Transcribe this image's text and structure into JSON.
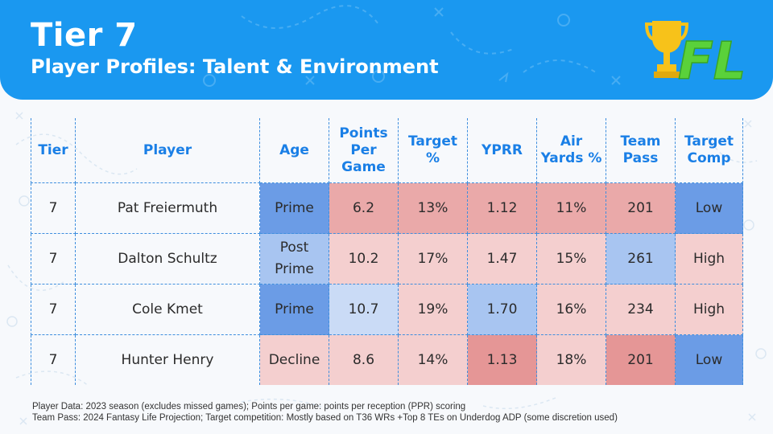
{
  "header": {
    "title": "Tier 7",
    "subtitle": "Player Profiles: Talent & Environment",
    "logo_text": "FL",
    "logo_icon": "trophy-icon"
  },
  "colors": {
    "header_blue": "#1a98f0",
    "header_text_blue": "#1a7fe6",
    "red_strong": "#e59696",
    "red_medium": "#eaa9a9",
    "red_light": "#f4cfcf",
    "blue_strong": "#6b9ce6",
    "blue_medium": "#a8c5f1",
    "blue_light": "#cadbf6",
    "logo_yellow": "#f7c21a",
    "logo_green": "#5ad13a"
  },
  "table": {
    "columns": [
      {
        "line1": "Tier",
        "line2": "",
        "line3": ""
      },
      {
        "line1": "Player",
        "line2": "",
        "line3": ""
      },
      {
        "line1": "Age",
        "line2": "",
        "line3": ""
      },
      {
        "line1": "Points",
        "line2": "Per",
        "line3": "Game"
      },
      {
        "line1": "Target",
        "line2": "%",
        "line3": ""
      },
      {
        "line1": "YPRR",
        "line2": "",
        "line3": ""
      },
      {
        "line1": "Air",
        "line2": "Yards %",
        "line3": ""
      },
      {
        "line1": "Team",
        "line2": "Pass",
        "line3": ""
      },
      {
        "line1": "Target",
        "line2": "Comp",
        "line3": ""
      }
    ],
    "rows": [
      {
        "tier": "7",
        "player": "Pat Freiermuth",
        "age_line1": "Prime",
        "age_line2": "",
        "ppg": "6.2",
        "target_pct": "13%",
        "yprr": "1.12",
        "air_yards_pct": "11%",
        "team_pass": "201",
        "target_comp": "Low"
      },
      {
        "tier": "7",
        "player": "Dalton Schultz",
        "age_line1": "Post",
        "age_line2": "Prime",
        "ppg": "10.2",
        "target_pct": "17%",
        "yprr": "1.47",
        "air_yards_pct": "15%",
        "team_pass": "261",
        "target_comp": "High"
      },
      {
        "tier": "7",
        "player": "Cole Kmet",
        "age_line1": "Prime",
        "age_line2": "",
        "ppg": "10.7",
        "target_pct": "19%",
        "yprr": "1.70",
        "air_yards_pct": "16%",
        "team_pass": "234",
        "target_comp": "High"
      },
      {
        "tier": "7",
        "player": "Hunter Henry",
        "age_line1": "Decline",
        "age_line2": "",
        "ppg": "8.6",
        "target_pct": "14%",
        "yprr": "1.13",
        "air_yards_pct": "18%",
        "team_pass": "201",
        "target_comp": "Low"
      }
    ]
  },
  "footnotes": {
    "line1": "Player Data: 2023 season (excludes missed games); Points per game: points per reception (PPR) scoring",
    "line2": "Team Pass: 2024 Fantasy Life Projection; Target competition: Mostly based on T36 WRs +Top 8 TEs on Underdog ADP (some discretion used)"
  }
}
